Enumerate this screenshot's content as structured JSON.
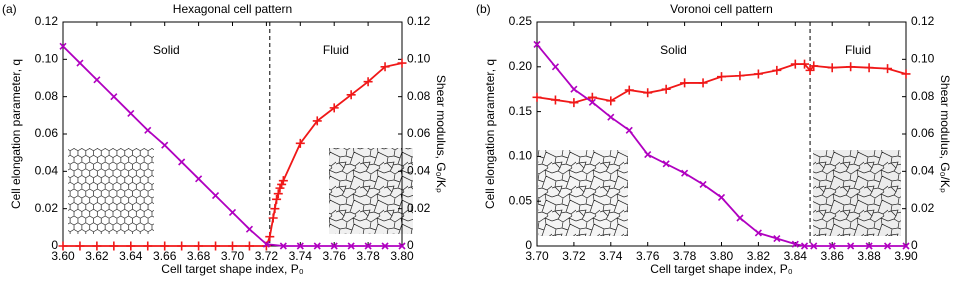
{
  "chart_data": [
    {
      "type": "line",
      "panel_label": "(a)",
      "title": "Hexagonal cell pattern",
      "xlabel": "Cell target shape index, P₀",
      "ylabel": "Cell elongation parameter, q",
      "y2label": "Shear modulus, G₀/Kₚ",
      "xlim": [
        3.6,
        3.8
      ],
      "xticks": [
        {
          "value": 3.6,
          "label": "3.60"
        },
        3.62,
        3.64,
        3.66,
        3.68,
        {
          "value": 3.7,
          "label": "3.70"
        },
        3.72,
        3.74,
        3.76,
        3.78,
        {
          "value": 3.8,
          "label": "3.80"
        }
      ],
      "ylim": [
        0,
        0.12
      ],
      "yticks": [
        0,
        0.02,
        0.04,
        0.06,
        0.08,
        {
          "value": 0.1,
          "label": "0.10"
        },
        0.12
      ],
      "y2lim": [
        0,
        0.12
      ],
      "y2ticks": [
        0,
        0.02,
        0.04,
        0.06,
        0.08,
        {
          "value": 0.1,
          "label": "0.10"
        },
        0.12
      ],
      "vlines": [
        3.722
      ],
      "region_labels": [
        "Solid",
        "Fluid"
      ],
      "series": [
        {
          "color": "#f01818",
          "marker": "+",
          "axis": "y",
          "x": [
            3.6,
            3.61,
            3.62,
            3.63,
            3.64,
            3.65,
            3.66,
            3.67,
            3.68,
            3.69,
            3.7,
            3.71,
            3.72,
            3.722,
            3.724,
            3.725,
            3.726,
            3.727,
            3.728,
            3.729,
            3.73,
            3.74,
            3.75,
            3.76,
            3.77,
            3.78,
            3.79,
            3.8
          ],
          "values": [
            0,
            0,
            0,
            0,
            0,
            0,
            0,
            0,
            0,
            0,
            0,
            0,
            0,
            0.005,
            0.015,
            0.02,
            0.025,
            0.028,
            0.031,
            0.033,
            0.035,
            0.055,
            0.067,
            0.074,
            0.081,
            0.088,
            0.096,
            0.098
          ]
        },
        {
          "color": "#b000c0",
          "marker": "x",
          "axis": "y2",
          "x": [
            3.6,
            3.61,
            3.62,
            3.63,
            3.64,
            3.65,
            3.66,
            3.67,
            3.68,
            3.69,
            3.7,
            3.71,
            3.72,
            3.73,
            3.74,
            3.75,
            3.76,
            3.77,
            3.78,
            3.79,
            3.8
          ],
          "values": [
            0.107,
            0.098,
            0.089,
            0.08,
            0.071,
            0.062,
            0.054,
            0.045,
            0.036,
            0.027,
            0.018,
            0.009,
            0.001,
            0,
            0,
            0,
            0,
            0,
            0,
            0,
            0
          ]
        }
      ]
    },
    {
      "type": "line",
      "panel_label": "(b)",
      "title": "Voronoi cell pattern",
      "xlabel": "Cell target shape index, P₀",
      "ylabel": "Cell elongation parameter, q",
      "y2label": "Shear modulus, G₀/Kₚ",
      "xlim": [
        3.7,
        3.9
      ],
      "xticks": [
        {
          "value": 3.7,
          "label": "3.70"
        },
        3.72,
        3.74,
        3.76,
        3.78,
        {
          "value": 3.8,
          "label": "3.80"
        },
        3.82,
        3.84,
        3.86,
        3.88,
        {
          "value": 3.9,
          "label": "3.90"
        }
      ],
      "ylim": [
        0,
        0.25
      ],
      "yticks": [
        0,
        0.05,
        {
          "value": 0.1,
          "label": "0.10"
        },
        0.15,
        {
          "value": 0.2,
          "label": "0.20"
        },
        0.25
      ],
      "y2lim": [
        0,
        0.12
      ],
      "y2ticks": [
        0,
        0.02,
        0.04,
        0.06,
        0.08,
        {
          "value": 0.1,
          "label": "0.10"
        },
        0.12
      ],
      "vlines": [
        3.848
      ],
      "region_labels": [
        "Solid",
        "Fluid"
      ],
      "series": [
        {
          "color": "#f01818",
          "marker": "+",
          "axis": "y",
          "x": [
            3.7,
            3.71,
            3.72,
            3.73,
            3.74,
            3.75,
            3.76,
            3.77,
            3.78,
            3.79,
            3.8,
            3.81,
            3.82,
            3.83,
            3.84,
            3.845,
            3.848,
            3.85,
            3.86,
            3.87,
            3.88,
            3.89,
            3.9
          ],
          "values": [
            0.166,
            0.163,
            0.16,
            0.166,
            0.162,
            0.174,
            0.171,
            0.175,
            0.182,
            0.182,
            0.189,
            0.19,
            0.192,
            0.196,
            0.203,
            0.203,
            0.196,
            0.201,
            0.199,
            0.2,
            0.199,
            0.198,
            0.192
          ]
        },
        {
          "color": "#b000c0",
          "marker": "x",
          "axis": "y2",
          "x": [
            3.7,
            3.71,
            3.72,
            3.73,
            3.74,
            3.75,
            3.76,
            3.77,
            3.78,
            3.79,
            3.8,
            3.81,
            3.82,
            3.83,
            3.84,
            3.845,
            3.85,
            3.86,
            3.87,
            3.88,
            3.89,
            3.9
          ],
          "values": [
            0.108,
            0.096,
            0.084,
            0.077,
            0.069,
            0.062,
            0.049,
            0.044,
            0.039,
            0.033,
            0.026,
            0.015,
            0.007,
            0.004,
            0.001,
            0,
            0,
            0,
            0,
            0,
            0,
            0
          ]
        }
      ]
    }
  ]
}
